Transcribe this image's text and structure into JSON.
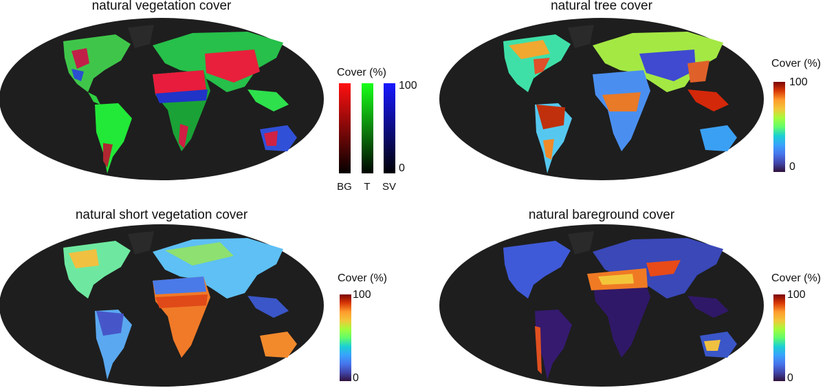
{
  "panels": {
    "vegetation": {
      "title": "natural vegetation cover"
    },
    "tree": {
      "title": "natural tree cover"
    },
    "short": {
      "title": "natural short vegetation cover"
    },
    "bareground": {
      "title": "natural bareground cover"
    }
  },
  "legend_rgb": {
    "label": "Cover (%)",
    "max": "100",
    "min": "0",
    "channels": [
      {
        "name": "BG",
        "color": "#ff1010"
      },
      {
        "name": "T",
        "color": "#18ff18"
      },
      {
        "name": "SV",
        "color": "#1818ff"
      }
    ]
  },
  "legend_scale": {
    "label": "Cover (%)",
    "max": "100",
    "min": "0"
  },
  "colors": {
    "ocean": "#1e1e1e",
    "turbo": [
      "#30123b",
      "#4145ab",
      "#4675ed",
      "#39a2fc",
      "#1bcfd4",
      "#24eca6",
      "#61fc6c",
      "#a4fc3b",
      "#d1e834",
      "#f3c63a",
      "#fe9b2d",
      "#f36315",
      "#d93806",
      "#b11901",
      "#7a0403"
    ]
  }
}
